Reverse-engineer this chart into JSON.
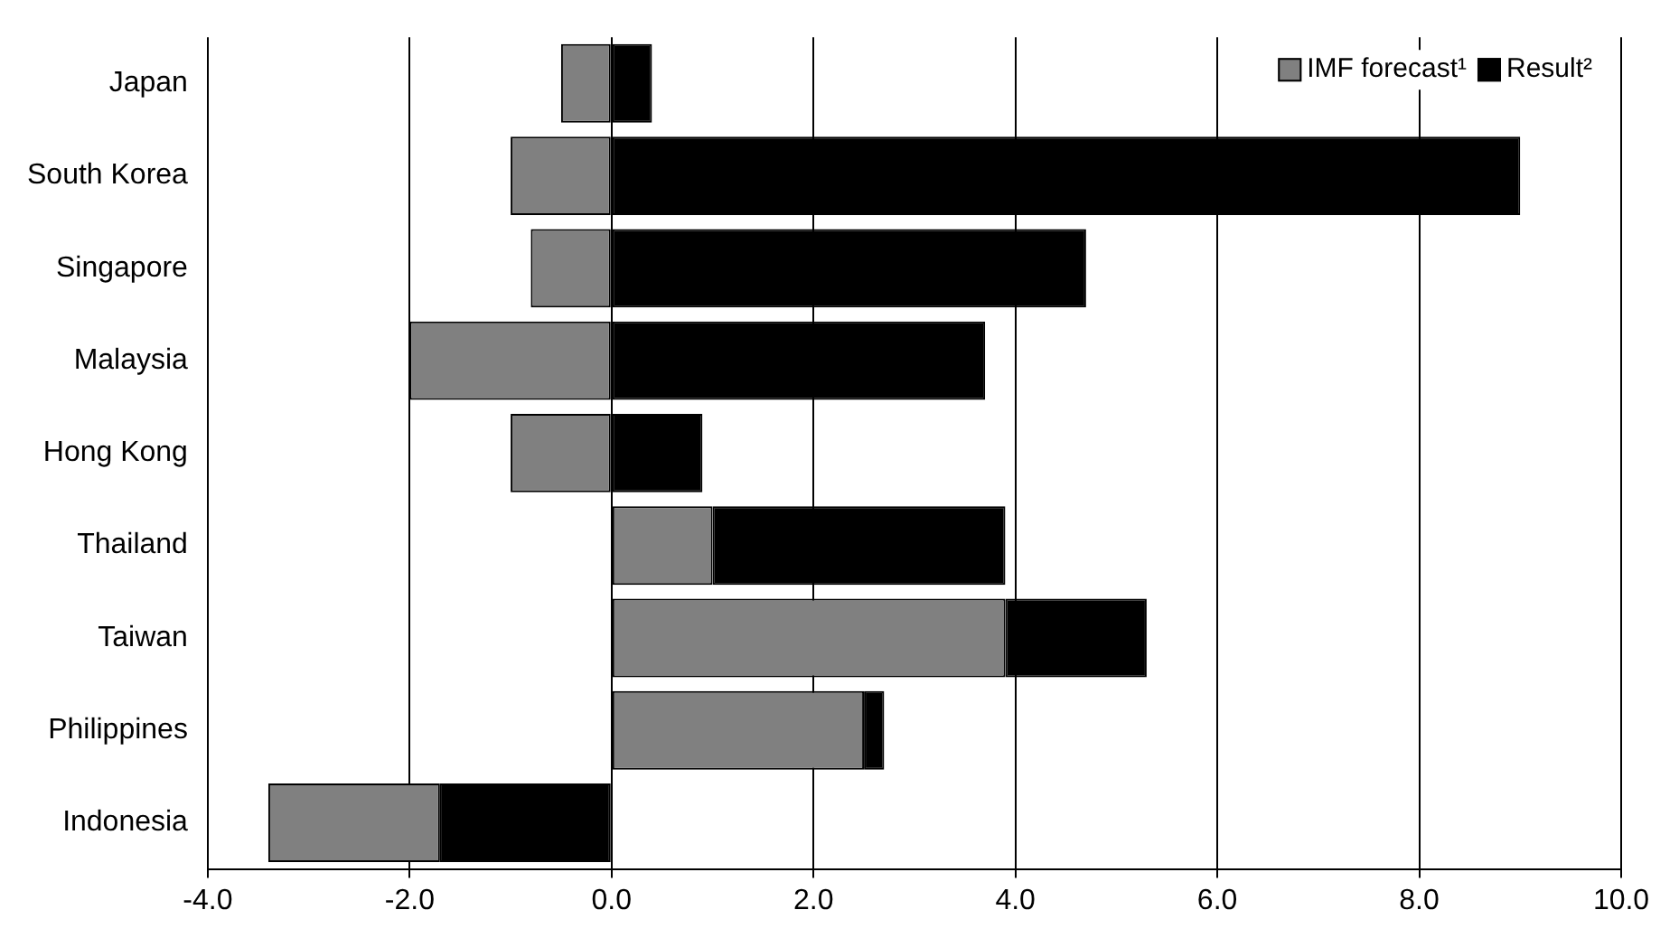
{
  "chart_data": {
    "type": "bar",
    "orientation": "horizontal",
    "categories": [
      "Japan",
      "South Korea",
      "Singapore",
      "Malaysia",
      "Hong Kong",
      "Thailand",
      "Taiwan",
      "Philippines",
      "Indonesia"
    ],
    "series": [
      {
        "name": "IMF forecast¹",
        "color": "#808080",
        "values": [
          -0.5,
          -1.0,
          -0.8,
          -2.0,
          -1.0,
          1.0,
          3.9,
          2.5,
          -1.7
        ],
        "base": [
          0,
          0,
          0,
          0,
          0,
          0,
          0,
          0,
          -1.7
        ]
      },
      {
        "name": "Result²",
        "color": "#000000",
        "values": [
          0.4,
          9.0,
          4.7,
          3.7,
          0.9,
          2.9,
          1.4,
          0.2,
          -1.7
        ],
        "base": [
          0,
          0,
          0,
          0,
          0,
          1.0,
          3.9,
          2.5,
          0
        ]
      }
    ],
    "xlim": [
      -4,
      10
    ],
    "xticks": [
      {
        "value": -4,
        "label": "-4.0"
      },
      {
        "value": -2,
        "label": "-2.0"
      },
      {
        "value": 0,
        "label": "0.0"
      },
      {
        "value": 2,
        "label": "2.0"
      },
      {
        "value": 4,
        "label": "4.0"
      },
      {
        "value": 6,
        "label": "6.0"
      },
      {
        "value": 8,
        "label": "8.0"
      },
      {
        "value": 10,
        "label": "10.0"
      }
    ],
    "grid": "x",
    "legend": "top right"
  }
}
